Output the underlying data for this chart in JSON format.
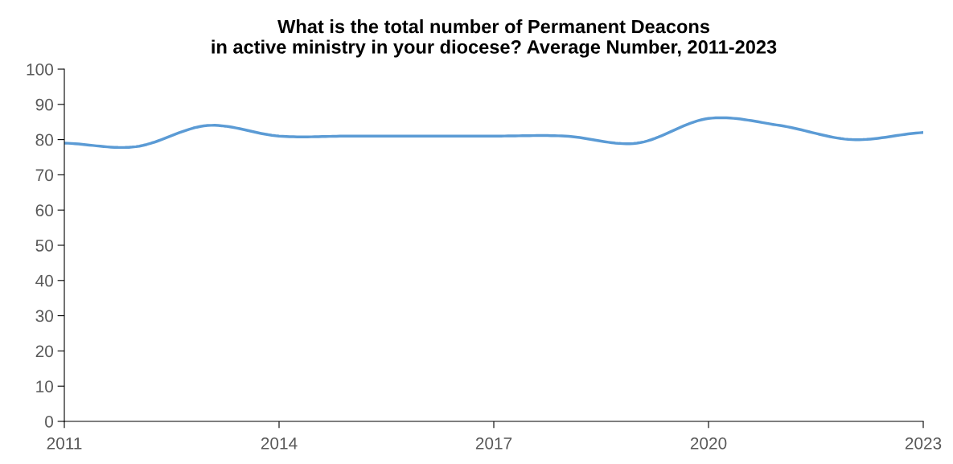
{
  "chart_data": {
    "type": "line",
    "title": "What is the total number of Permanent Deacons\nin active ministry in your diocese? Average Number, 2011-2023",
    "x": [
      2011,
      2012,
      2013,
      2014,
      2015,
      2016,
      2017,
      2018,
      2019,
      2020,
      2021,
      2022,
      2023
    ],
    "series": [
      {
        "color": "#5b9bd5",
        "values": [
          79,
          78,
          84,
          81,
          81,
          81,
          81,
          81,
          79,
          86,
          84,
          80,
          82
        ]
      }
    ],
    "xlim": [
      2011,
      2023
    ],
    "xticks": [
      2011,
      2014,
      2017,
      2020,
      2023
    ],
    "ylim": [
      0,
      100
    ],
    "yticks": [
      0,
      10,
      20,
      30,
      40,
      50,
      60,
      70,
      80,
      90,
      100
    ],
    "grid": false,
    "legend": false,
    "marker": "none",
    "line_style": "solid"
  }
}
